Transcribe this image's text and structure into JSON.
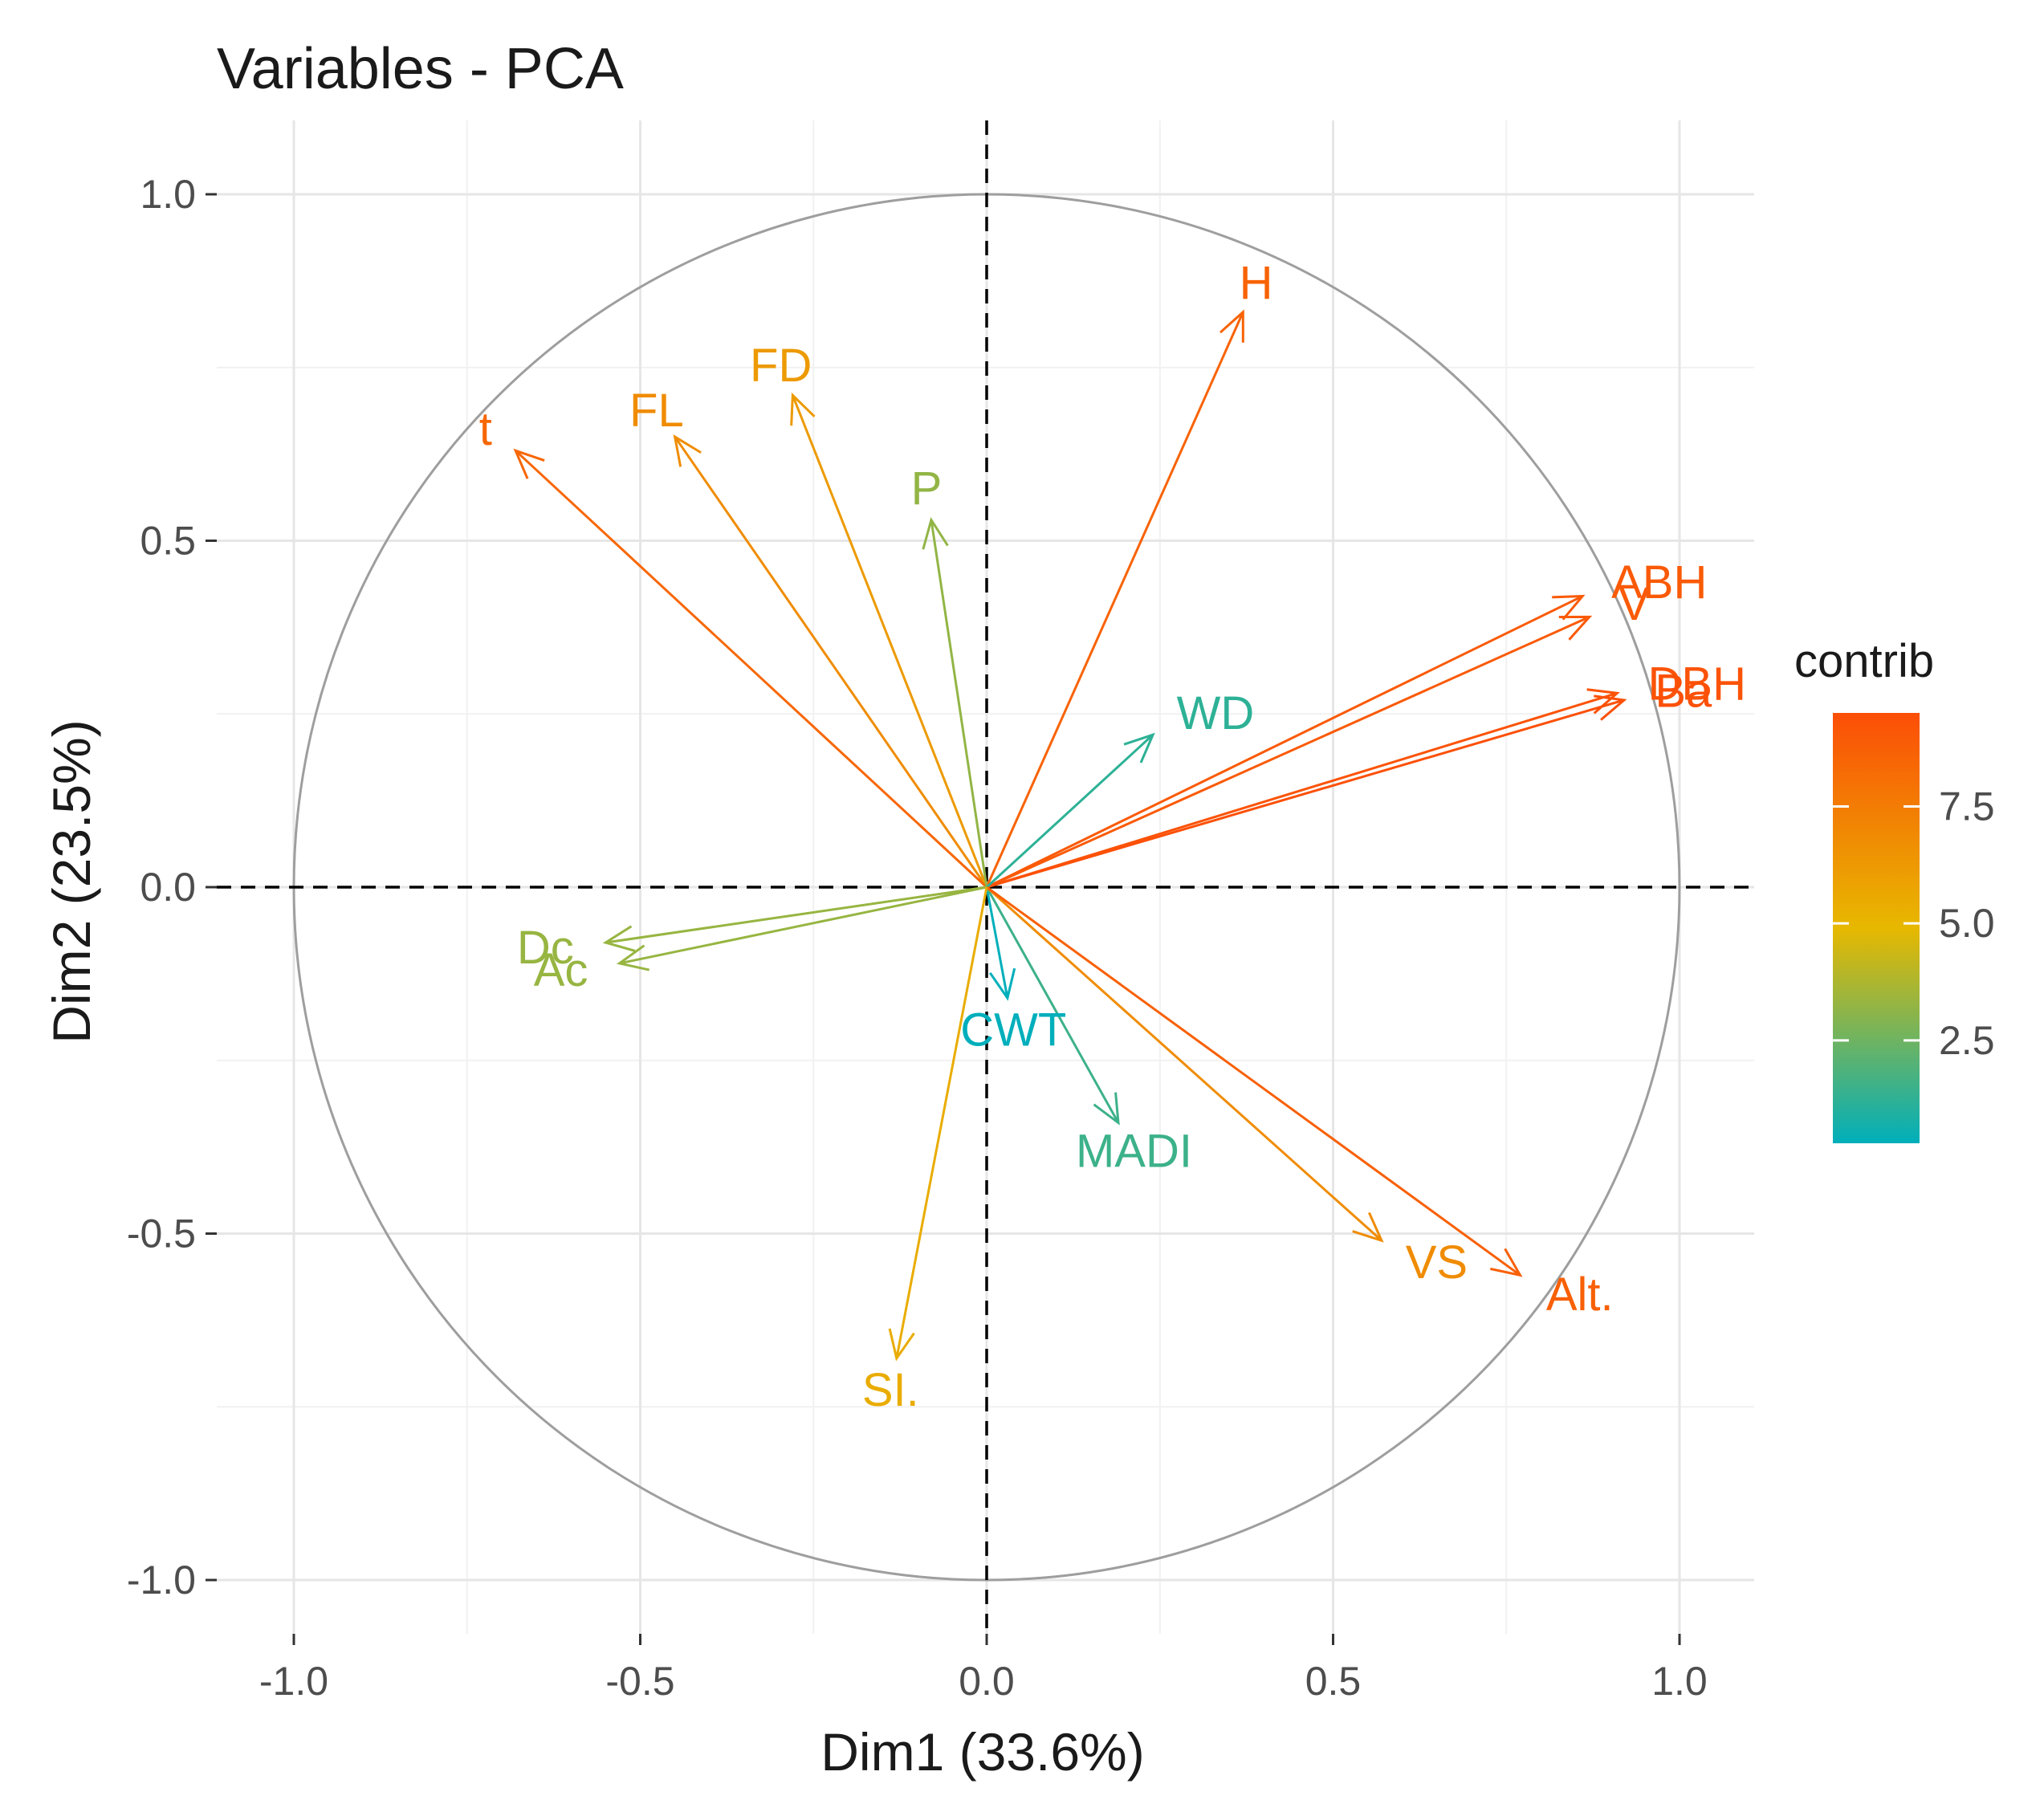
{
  "chart_data": {
    "type": "scatter",
    "subtype": "pca-variable-correlation-circle",
    "title": "Variables - PCA",
    "xlabel": "Dim1 (33.6%)",
    "ylabel": "Dim2 (23.5%)",
    "xlim": [
      -1.1,
      1.1
    ],
    "ylim": [
      -1.1,
      1.1
    ],
    "x_ticks": [
      -1.0,
      -0.5,
      0.0,
      0.5,
      1.0
    ],
    "y_ticks": [
      -1.0,
      -0.5,
      0.0,
      0.5,
      1.0
    ],
    "x_tick_labels": [
      "-1.0",
      "-0.5",
      "0.0",
      "0.5",
      "1.0"
    ],
    "y_tick_labels": [
      "-1.0",
      "-0.5",
      "0.0",
      "0.5",
      "1.0"
    ],
    "grid": true,
    "unit_circle": true,
    "reference_lines": [
      0,
      0
    ],
    "variables": [
      {
        "name": "H",
        "x": 0.37,
        "y": 0.83,
        "contrib": 8.6
      },
      {
        "name": "FL",
        "x": -0.45,
        "y": 0.65,
        "contrib": 6.8
      },
      {
        "name": "FD",
        "x": -0.28,
        "y": 0.71,
        "contrib": 6.2
      },
      {
        "name": "t",
        "x": -0.68,
        "y": 0.63,
        "contrib": 8.4
      },
      {
        "name": "P",
        "x": -0.08,
        "y": 0.53,
        "contrib": 3.2
      },
      {
        "name": "ABH",
        "x": 0.86,
        "y": 0.42,
        "contrib": 9.0
      },
      {
        "name": "V",
        "x": 0.87,
        "y": 0.39,
        "contrib": 9.0
      },
      {
        "name": "DBH",
        "x": 0.91,
        "y": 0.28,
        "contrib": 9.3
      },
      {
        "name": "Ba",
        "x": 0.92,
        "y": 0.27,
        "contrib": 9.4
      },
      {
        "name": "WD",
        "x": 0.24,
        "y": 0.22,
        "contrib": 1.2
      },
      {
        "name": "Dc",
        "x": -0.55,
        "y": -0.08,
        "contrib": 3.3
      },
      {
        "name": "Ac",
        "x": -0.53,
        "y": -0.11,
        "contrib": 3.3
      },
      {
        "name": "CWT",
        "x": 0.03,
        "y": -0.16,
        "contrib": 0.3
      },
      {
        "name": "MADI",
        "x": 0.19,
        "y": -0.34,
        "contrib": 1.5
      },
      {
        "name": "VS",
        "x": 0.57,
        "y": -0.51,
        "contrib": 6.8
      },
      {
        "name": "Alt.",
        "x": 0.77,
        "y": -0.56,
        "contrib": 8.7
      },
      {
        "name": "SI.",
        "x": -0.13,
        "y": -0.68,
        "contrib": 5.4
      }
    ],
    "legend": {
      "title": "contrib",
      "position": "right",
      "range": [
        0.3,
        9.5
      ],
      "ticks": [
        2.5,
        5.0,
        7.5
      ],
      "tick_labels": [
        "2.5",
        "5.0",
        "7.5"
      ],
      "colors": [
        "#00AFBB",
        "#E7B800",
        "#FC4E07"
      ]
    }
  }
}
